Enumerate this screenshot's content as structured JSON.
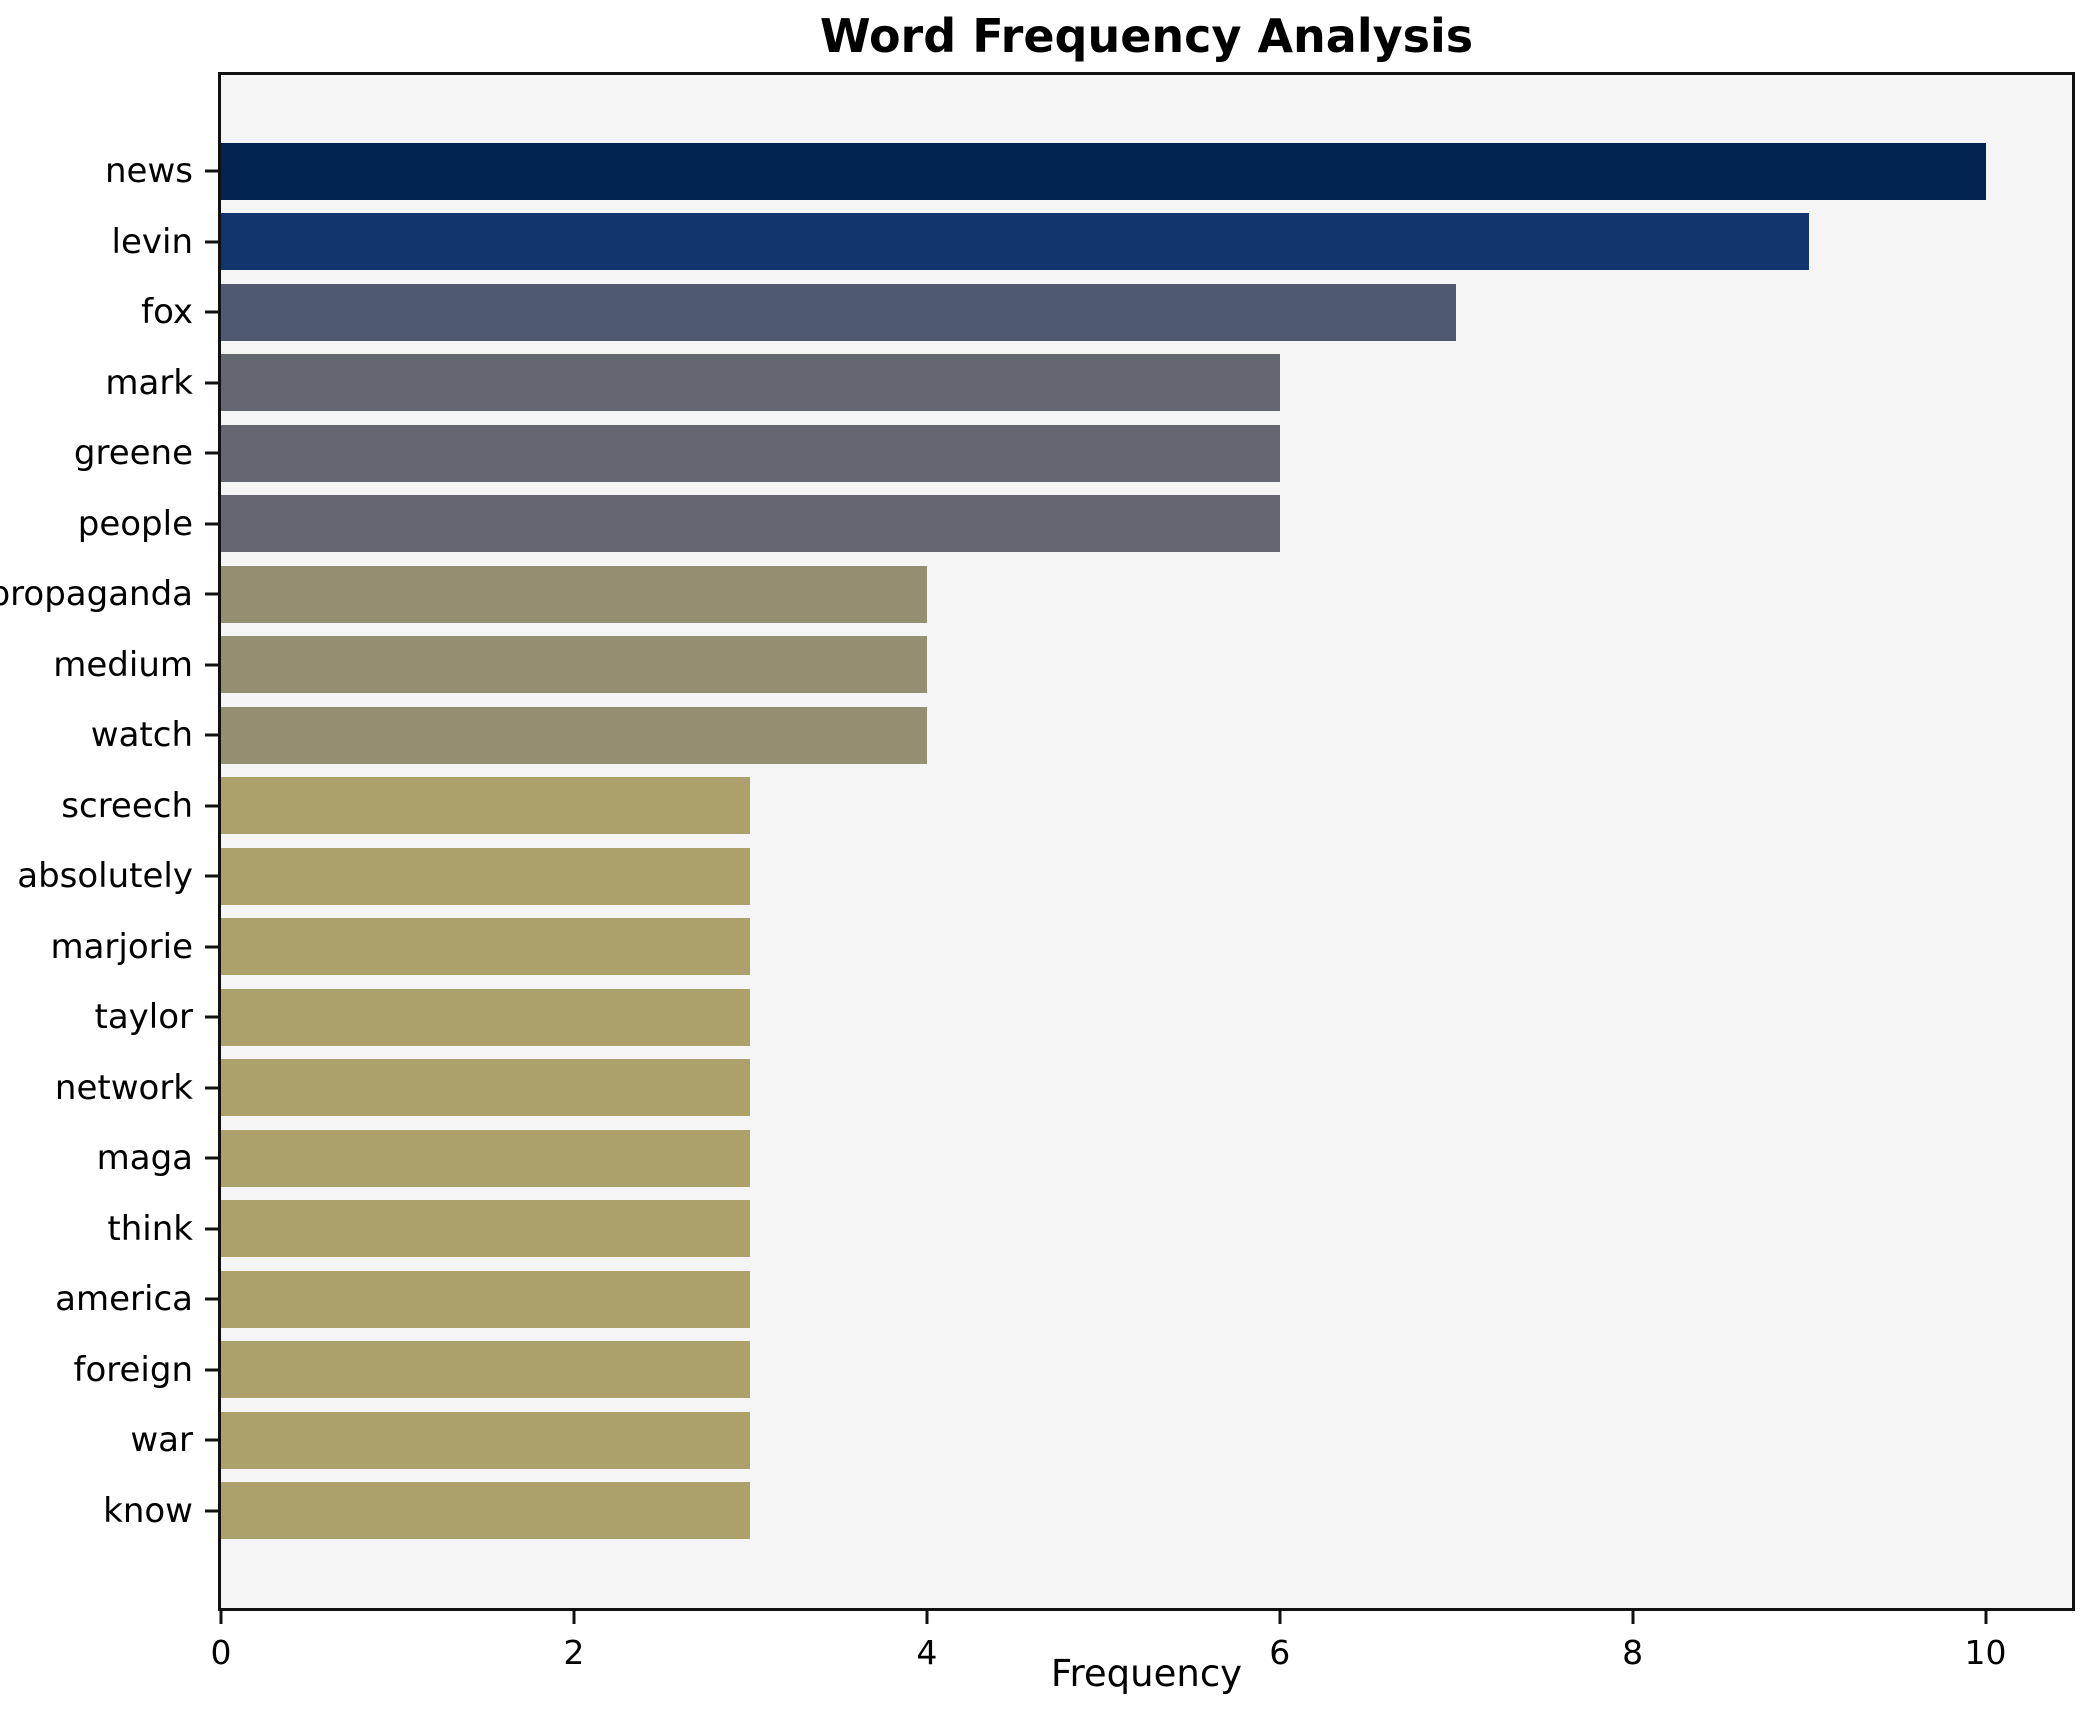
{
  "title": "Word Frequency Analysis",
  "chart_data": {
    "type": "bar",
    "orientation": "horizontal",
    "title": "Word Frequency Analysis",
    "xlabel": "Frequency",
    "ylabel": "",
    "categories": [
      "news",
      "levin",
      "fox",
      "mark",
      "greene",
      "people",
      "propaganda",
      "medium",
      "watch",
      "screech",
      "absolutely",
      "marjorie",
      "taylor",
      "network",
      "maga",
      "think",
      "america",
      "foreign",
      "war",
      "know"
    ],
    "values": [
      10,
      9,
      7,
      6,
      6,
      6,
      4,
      4,
      4,
      3,
      3,
      3,
      3,
      3,
      3,
      3,
      3,
      3,
      3,
      3
    ],
    "bar_colors": [
      "#02234d",
      "#12356e",
      "#4f5971",
      "#656770",
      "#656770",
      "#656770",
      "#938f71",
      "#938f71",
      "#938f71",
      "#aca16b",
      "#aca16b",
      "#aca16b",
      "#aca16b",
      "#aca16b",
      "#aca16b",
      "#aca16b",
      "#aca16b",
      "#aca16b",
      "#aca16b",
      "#aca16b"
    ],
    "xticks": [
      0,
      2,
      4,
      6,
      8,
      10
    ],
    "xlim": [
      0,
      10.49
    ],
    "grid": false,
    "legend": "none",
    "plot_background": "#f5f5f6",
    "figure_background": "#ffffff",
    "axis_color": "#111111"
  }
}
